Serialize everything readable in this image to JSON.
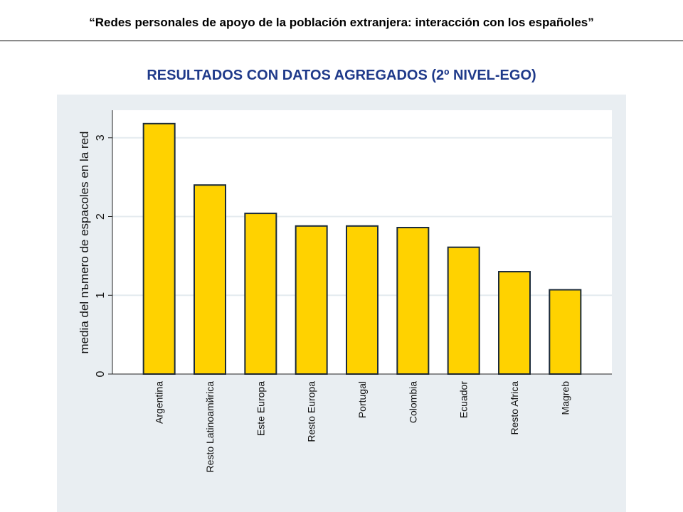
{
  "header": {
    "title": "“Redes personales de apoyo de la población extranjera: interacción con los españoles”"
  },
  "section": {
    "title": "RESULTADOS CON DATOS AGREGADOS (2º NIVEL-EGO)"
  },
  "colors": {
    "bar_fill": "#ffd200",
    "bar_stroke": "#1a2a3a",
    "panel_bg": "#e9eef2",
    "plot_bg": "#ffffff",
    "grid": "#e4ebef",
    "title_color": "#1f3a8a"
  },
  "chart_data": {
    "type": "bar",
    "categories": [
      "Argentina",
      "Resto Latinoamйrica",
      "Este Europa",
      "Resto Europa",
      "Portugal",
      "Colombia",
      "Ecuador",
      "Resto Africa",
      "Magreb"
    ],
    "values": [
      3.18,
      2.4,
      2.04,
      1.88,
      1.88,
      1.86,
      1.61,
      1.3,
      1.07
    ],
    "ylabel": "media del nъmero de espacoles en la red",
    "xlabel": "",
    "ylim": [
      0,
      3.35
    ],
    "yticks": [
      0,
      1,
      2,
      3
    ],
    "grid": true
  }
}
